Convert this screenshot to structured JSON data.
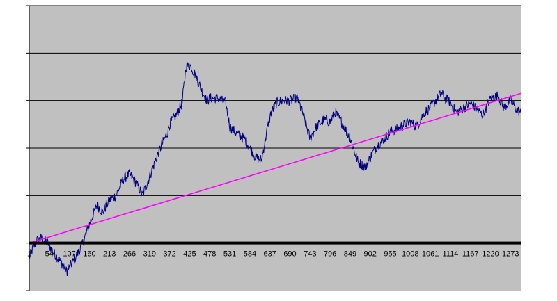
{
  "chart_data": {
    "type": "line",
    "title": "",
    "xlabel": "",
    "ylabel": "",
    "grid": true,
    "legend": "none",
    "x_range": [
      1,
      1300
    ],
    "y_range": [
      -1,
      5
    ],
    "y_zero_baseline": 0,
    "x_tick_labels": [
      "1",
      "54",
      "107",
      "160",
      "213",
      "266",
      "319",
      "372",
      "425",
      "478",
      "531",
      "584",
      "637",
      "690",
      "743",
      "796",
      "849",
      "902",
      "955",
      "1008",
      "1061",
      "1114",
      "1167",
      "1220",
      "1273"
    ],
    "colors": {
      "plot_background": "#c0c0c0",
      "series": "#000080",
      "trend": "#ff00ff",
      "gridline": "#000000"
    },
    "series": [
      {
        "style": "jagged",
        "x": [
          1,
          20,
          35,
          50,
          65,
          85,
          100,
          120,
          140,
          160,
          180,
          195,
          213,
          230,
          250,
          266,
          285,
          300,
          319,
          335,
          350,
          365,
          372,
          390,
          405,
          415,
          425,
          440,
          455,
          470,
          478,
          500,
          520,
          531,
          550,
          570,
          584,
          600,
          615,
          630,
          640,
          655,
          670,
          690,
          710,
          725,
          743,
          760,
          780,
          796,
          810,
          830,
          849,
          870,
          890,
          905,
          920,
          940,
          955,
          975,
          990,
          1008,
          1025,
          1045,
          1061,
          1075,
          1090,
          1100,
          1114,
          1130,
          1150,
          1167,
          1185,
          1200,
          1220,
          1240,
          1255,
          1273,
          1290,
          1300
        ],
        "y": [
          -0.3,
          0.05,
          0.1,
          0.0,
          -0.2,
          -0.4,
          -0.6,
          -0.35,
          -0.05,
          0.4,
          0.8,
          0.65,
          0.9,
          1.0,
          1.35,
          1.45,
          1.25,
          1.0,
          1.4,
          1.75,
          2.05,
          2.3,
          2.5,
          2.7,
          2.95,
          3.7,
          3.75,
          3.55,
          3.25,
          3.0,
          3.05,
          3.05,
          2.95,
          2.45,
          2.3,
          2.2,
          2.0,
          1.8,
          1.75,
          2.4,
          2.75,
          2.95,
          3.0,
          3.0,
          3.05,
          2.7,
          2.2,
          2.45,
          2.6,
          2.55,
          2.75,
          2.5,
          2.2,
          1.7,
          1.6,
          1.85,
          2.05,
          2.2,
          2.35,
          2.4,
          2.5,
          2.55,
          2.45,
          2.75,
          2.85,
          3.0,
          3.15,
          3.05,
          2.95,
          2.75,
          2.85,
          2.95,
          2.8,
          2.7,
          3.05,
          3.1,
          2.85,
          3.0,
          2.8,
          2.75
        ]
      },
      {
        "style": "trend",
        "x": [
          1,
          1300
        ],
        "y": [
          0.0,
          3.15
        ]
      }
    ]
  }
}
